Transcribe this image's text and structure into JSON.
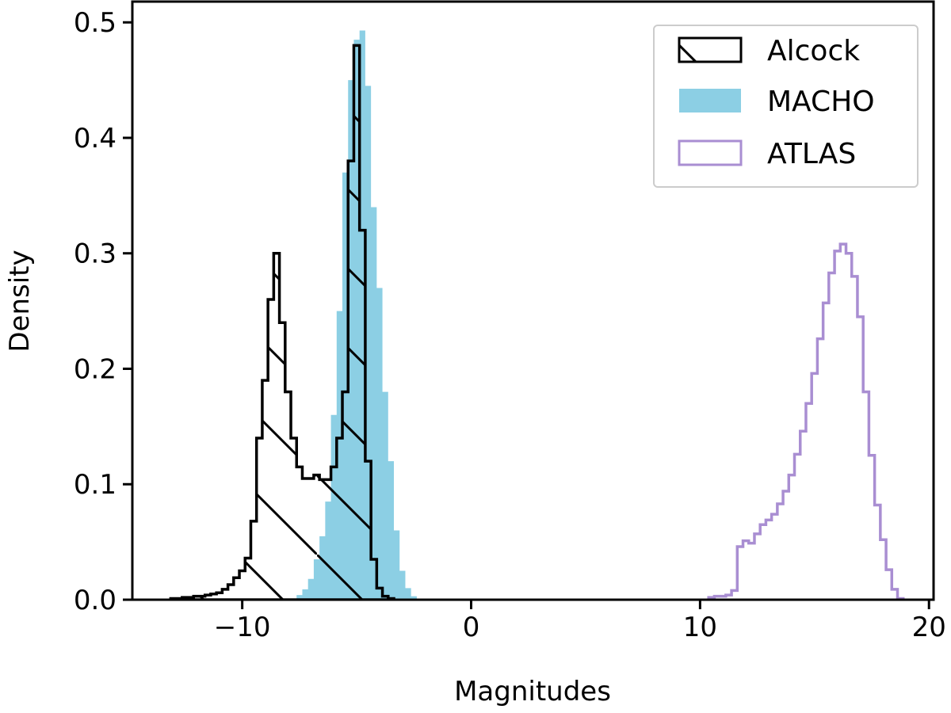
{
  "chart_data": {
    "type": "histogram",
    "xlabel": "Magnitudes",
    "ylabel": "Density",
    "xlim": [
      -14.8,
      20.2
    ],
    "ylim": [
      0,
      0.518
    ],
    "x_ticks": [
      -10,
      0,
      10,
      20
    ],
    "x_tick_labels": [
      "−10",
      "0",
      "10",
      "20"
    ],
    "y_ticks": [
      0.0,
      0.1,
      0.2,
      0.3,
      0.4,
      0.5
    ],
    "y_tick_labels": [
      "0.0",
      "0.1",
      "0.2",
      "0.3",
      "0.4",
      "0.5"
    ],
    "grid": false,
    "legend_position": "top-right",
    "bin_width": 0.25,
    "series": [
      {
        "name": "Alcock",
        "style": "step-hatched",
        "color": "#000000",
        "bin_centers": [
          -13.0,
          -12.75,
          -12.5,
          -12.25,
          -12.0,
          -11.75,
          -11.5,
          -11.25,
          -11.0,
          -10.75,
          -10.5,
          -10.25,
          -10.0,
          -9.75,
          -9.5,
          -9.25,
          -9.0,
          -8.75,
          -8.5,
          -8.25,
          -8.0,
          -7.75,
          -7.5,
          -7.25,
          -7.0,
          -6.75,
          -6.5,
          -6.25,
          -6.0,
          -5.75,
          -5.5,
          -5.25,
          -5.0,
          -4.75,
          -4.5,
          -4.25,
          -4.0,
          -3.75,
          -3.5
        ],
        "density": [
          0.001,
          0.001,
          0.002,
          0.002,
          0.003,
          0.003,
          0.004,
          0.005,
          0.006,
          0.009,
          0.013,
          0.019,
          0.025,
          0.036,
          0.068,
          0.14,
          0.19,
          0.26,
          0.3,
          0.24,
          0.18,
          0.14,
          0.115,
          0.105,
          0.105,
          0.108,
          0.104,
          0.104,
          0.115,
          0.14,
          0.18,
          0.38,
          0.48,
          0.32,
          0.12,
          0.035,
          0.01,
          0.003,
          0.001
        ]
      },
      {
        "name": "MACHO",
        "style": "filled",
        "color": "#8ccfe4",
        "bin_centers": [
          -7.5,
          -7.25,
          -7.0,
          -6.75,
          -6.5,
          -6.25,
          -6.0,
          -5.75,
          -5.5,
          -5.25,
          -5.0,
          -4.75,
          -4.5,
          -4.25,
          -4.0,
          -3.75,
          -3.5,
          -3.25,
          -3.0,
          -2.75,
          -2.5
        ],
        "density": [
          0.004,
          0.009,
          0.018,
          0.035,
          0.055,
          0.085,
          0.16,
          0.25,
          0.37,
          0.45,
          0.485,
          0.493,
          0.445,
          0.34,
          0.27,
          0.18,
          0.12,
          0.06,
          0.025,
          0.01,
          0.003
        ]
      },
      {
        "name": "ATLAS",
        "style": "step",
        "color": "#a98ed2",
        "bin_centers": [
          10.5,
          10.75,
          11.0,
          11.25,
          11.5,
          11.75,
          12.0,
          12.25,
          12.5,
          12.75,
          13.0,
          13.25,
          13.5,
          13.75,
          14.0,
          14.25,
          14.5,
          14.75,
          15.0,
          15.25,
          15.5,
          15.75,
          16.0,
          16.25,
          16.5,
          16.75,
          17.0,
          17.25,
          17.5,
          17.75,
          18.0,
          18.25,
          18.5,
          18.75
        ],
        "density": [
          0.002,
          0.003,
          0.003,
          0.004,
          0.008,
          0.046,
          0.051,
          0.049,
          0.057,
          0.065,
          0.069,
          0.074,
          0.083,
          0.094,
          0.108,
          0.126,
          0.146,
          0.17,
          0.196,
          0.226,
          0.257,
          0.283,
          0.302,
          0.308,
          0.3,
          0.28,
          0.245,
          0.18,
          0.125,
          0.082,
          0.052,
          0.026,
          0.009,
          0.001
        ]
      }
    ]
  }
}
